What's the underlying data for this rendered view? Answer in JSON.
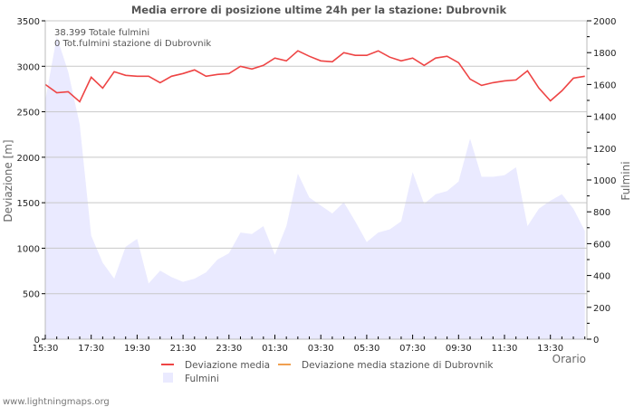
{
  "title": "Media errore di posizione ultime 24h per la stazione: Dubrovnik",
  "info": {
    "line1": "38.399 Totale fulmini",
    "line2": "0 Tot.fulmini stazione di Dubrovnik"
  },
  "footer": "www.lightningmaps.org",
  "colors": {
    "deviation": "#ee4444",
    "station_deviation": "#f0a050",
    "strikes_fill": "#eaeaff",
    "grid": "#c8c8c8",
    "axis": "#bbbbbb"
  },
  "chart_data": {
    "type": "line",
    "title": "Media errore di posizione ultime 24h per la stazione: Dubrovnik",
    "xlabel": "Orario",
    "ylabel": "Deviazione  [m]",
    "y2label": "Fulmini",
    "ylim": [
      0,
      3500
    ],
    "y2lim": [
      0,
      2000
    ],
    "yticks": [
      0,
      500,
      1000,
      1500,
      2000,
      2500,
      3000,
      3500
    ],
    "y2ticks": [
      0,
      200,
      400,
      600,
      800,
      1000,
      1200,
      1400,
      1600,
      1800,
      2000
    ],
    "xtick_labels": [
      "15:30",
      "17:30",
      "19:30",
      "21:30",
      "23:30",
      "01:30",
      "03:30",
      "05:30",
      "07:30",
      "09:30",
      "11:30",
      "13:30"
    ],
    "grid": true,
    "legend_position": "bottom",
    "series": [
      {
        "name": "Deviazione media",
        "axis": "left",
        "type": "line",
        "values": [
          2800,
          2710,
          2720,
          2610,
          2880,
          2760,
          2940,
          2900,
          2890,
          2890,
          2820,
          2890,
          2920,
          2960,
          2890,
          2910,
          2920,
          3000,
          2970,
          3010,
          3090,
          3060,
          3170,
          3110,
          3060,
          3050,
          3150,
          3120,
          3120,
          3170,
          3100,
          3060,
          3090,
          3010,
          3090,
          3110,
          3040,
          2860,
          2790,
          2820,
          2840,
          2850,
          2950,
          2760,
          2620,
          2730,
          2870,
          2890
        ]
      },
      {
        "name": "Deviazione media stazione di Dubrovnik",
        "axis": "left",
        "type": "line",
        "values": []
      },
      {
        "name": "Fulmini",
        "axis": "right",
        "type": "area",
        "values": [
          1500,
          1900,
          1680,
          1350,
          650,
          480,
          380,
          580,
          630,
          350,
          430,
          390,
          360,
          380,
          420,
          500,
          540,
          670,
          660,
          710,
          530,
          710,
          1040,
          890,
          840,
          790,
          860,
          740,
          610,
          670,
          690,
          740,
          1050,
          850,
          910,
          930,
          990,
          1260,
          1020,
          1020,
          1030,
          1080,
          710,
          820,
          870,
          910,
          820,
          680
        ]
      }
    ]
  },
  "legend": {
    "deviation": "Deviazione media",
    "station_deviation": "Deviazione media stazione di Dubrovnik",
    "strikes": "Fulmini"
  }
}
